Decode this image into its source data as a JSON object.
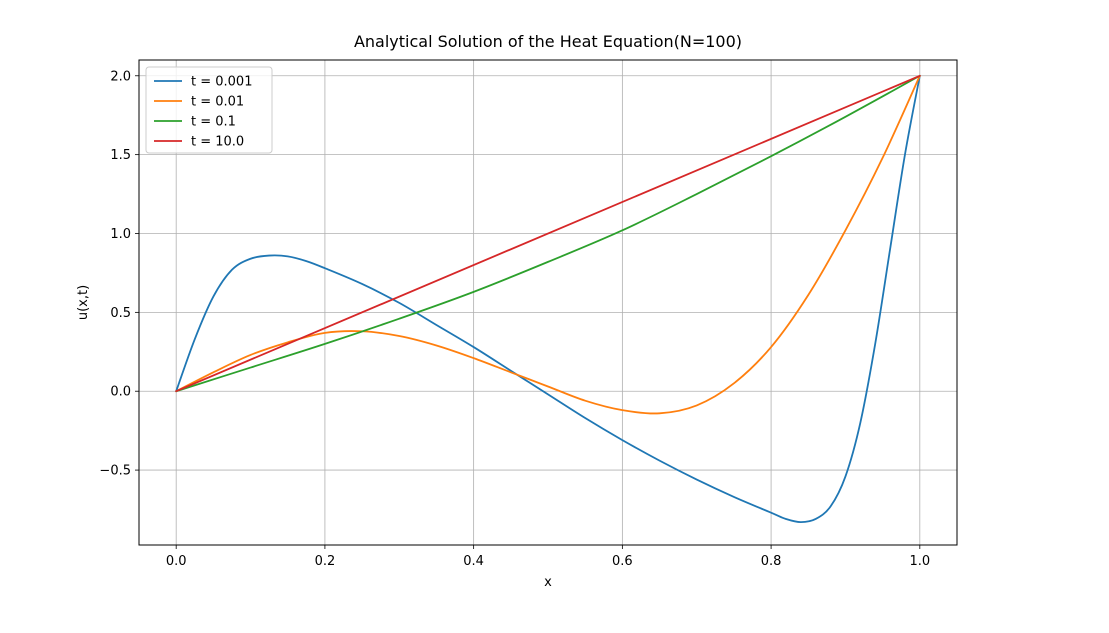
{
  "chart_data": {
    "type": "line",
    "title": "Analytical Solution of the Heat Equation(N=100)",
    "xlabel": "x",
    "ylabel": "u(x,t)",
    "xlim": [
      -0.05,
      1.05
    ],
    "ylim": [
      -0.975,
      2.1
    ],
    "xticks": [
      0.0,
      0.2,
      0.4,
      0.6,
      0.8,
      1.0
    ],
    "xtick_labels": [
      "0.0",
      "0.2",
      "0.4",
      "0.6",
      "0.8",
      "1.0"
    ],
    "yticks": [
      -0.5,
      0.0,
      0.5,
      1.0,
      1.5,
      2.0
    ],
    "ytick_labels": [
      "−0.5",
      "0.0",
      "0.5",
      "1.0",
      "1.5",
      "2.0"
    ],
    "grid": true,
    "legend_position": "top-left",
    "series": [
      {
        "name": "t = 0.001",
        "color": "#1f77b4",
        "x": [
          0.0,
          0.025,
          0.05,
          0.075,
          0.1,
          0.125,
          0.15,
          0.175,
          0.2,
          0.25,
          0.3,
          0.35,
          0.4,
          0.45,
          0.5,
          0.55,
          0.6,
          0.65,
          0.7,
          0.75,
          0.8,
          0.82,
          0.84,
          0.86,
          0.88,
          0.9,
          0.92,
          0.94,
          0.96,
          0.98,
          1.0
        ],
        "y": [
          0.0,
          0.33,
          0.6,
          0.77,
          0.84,
          0.86,
          0.855,
          0.825,
          0.78,
          0.68,
          0.56,
          0.42,
          0.28,
          0.13,
          -0.02,
          -0.17,
          -0.31,
          -0.44,
          -0.56,
          -0.67,
          -0.77,
          -0.81,
          -0.83,
          -0.81,
          -0.73,
          -0.54,
          -0.2,
          0.3,
          0.9,
          1.5,
          2.0
        ]
      },
      {
        "name": "t = 0.01",
        "color": "#ff7f0e",
        "x": [
          0.0,
          0.05,
          0.1,
          0.15,
          0.2,
          0.25,
          0.3,
          0.35,
          0.4,
          0.45,
          0.5,
          0.55,
          0.6,
          0.65,
          0.7,
          0.75,
          0.8,
          0.85,
          0.9,
          0.95,
          1.0
        ],
        "y": [
          0.0,
          0.12,
          0.23,
          0.31,
          0.37,
          0.38,
          0.35,
          0.29,
          0.21,
          0.12,
          0.03,
          -0.06,
          -0.12,
          -0.14,
          -0.09,
          0.05,
          0.28,
          0.61,
          1.02,
          1.48,
          2.0
        ]
      },
      {
        "name": "t = 0.1",
        "color": "#2ca02c",
        "x": [
          0.0,
          0.1,
          0.2,
          0.3,
          0.4,
          0.5,
          0.6,
          0.7,
          0.8,
          0.9,
          1.0
        ],
        "y": [
          0.0,
          0.15,
          0.3,
          0.46,
          0.63,
          0.82,
          1.02,
          1.25,
          1.49,
          1.74,
          2.0
        ]
      },
      {
        "name": "t = 10.0",
        "color": "#d62728",
        "x": [
          0.0,
          1.0
        ],
        "y": [
          0.0,
          2.0
        ]
      }
    ]
  }
}
